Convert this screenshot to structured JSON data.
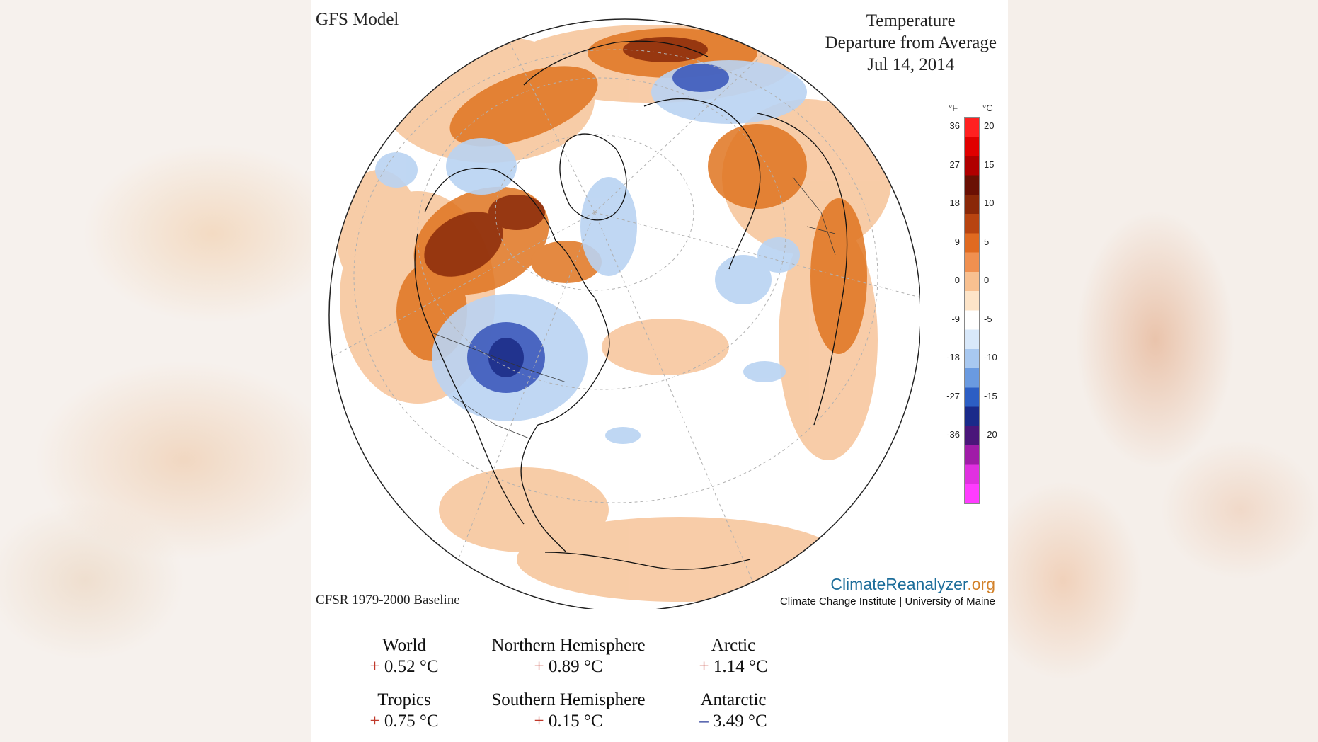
{
  "header": {
    "model": "GFS Model",
    "title_lines": [
      "Temperature",
      "Departure from Average",
      "Jul 14, 2014"
    ]
  },
  "baseline": "CFSR 1979-2000 Baseline",
  "brand": {
    "name_main": "ClimateReanalyzer",
    "name_suffix": ".org",
    "institution": "Climate Change Institute | University of Maine"
  },
  "legend": {
    "units_f": "°F",
    "units_c": "°C",
    "ticks": [
      {
        "f": "36",
        "c": "20"
      },
      {
        "f": "27",
        "c": "15"
      },
      {
        "f": "18",
        "c": "10"
      },
      {
        "f": "9",
        "c": "5"
      },
      {
        "f": "0",
        "c": "0"
      },
      {
        "f": "-9",
        "c": "-5"
      },
      {
        "f": "-18",
        "c": "-10"
      },
      {
        "f": "-27",
        "c": "-15"
      },
      {
        "f": "-36",
        "c": "-20"
      }
    ],
    "colors": [
      "#ff3cff",
      "#e030e0",
      "#a01ca8",
      "#4a167a",
      "#1a2a8a",
      "#2c5ec4",
      "#6a9ae0",
      "#a8c8f0",
      "#d8e8fa",
      "#ffffff",
      "#fde4c8",
      "#f8c090",
      "#f09050",
      "#e06a20",
      "#b84410",
      "#8a2808",
      "#6a1004",
      "#b00000",
      "#e00000",
      "#ff2020"
    ]
  },
  "stats": [
    {
      "region": "World",
      "sign": "+",
      "value": "0.52 °C"
    },
    {
      "region": "Northern Hemisphere",
      "sign": "+",
      "value": "0.89 °C"
    },
    {
      "region": "Arctic",
      "sign": "+",
      "value": "1.14 °C"
    },
    {
      "region": "Tropics",
      "sign": "+",
      "value": "0.75 °C"
    },
    {
      "region": "Southern Hemisphere",
      "sign": "+",
      "value": "0.15 °C"
    },
    {
      "region": "Antarctic",
      "sign": "–",
      "value": "3.49 °C"
    }
  ]
}
